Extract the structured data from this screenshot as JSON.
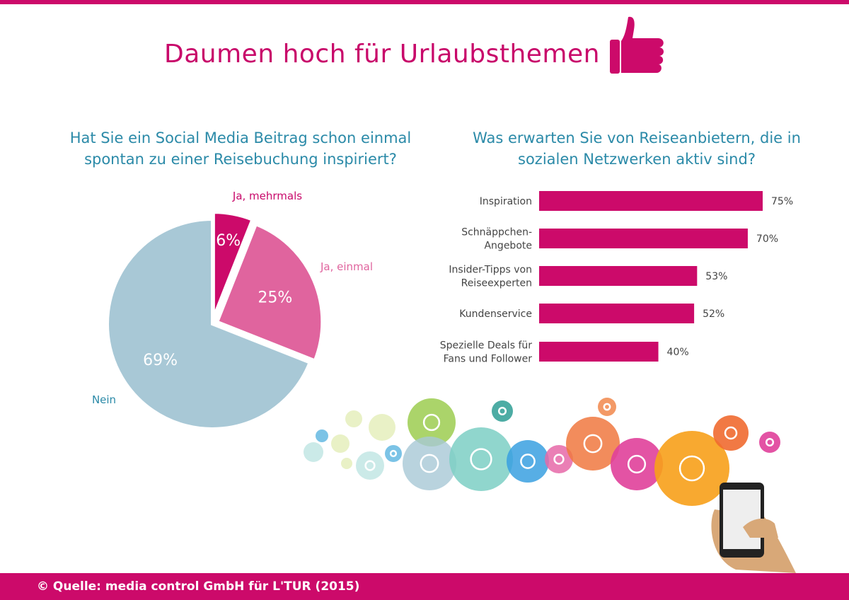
{
  "title": "Daumen hoch für Urlaubsthemen",
  "footer": "© Quelle: media control GmbH für L'TUR (2015)",
  "colors": {
    "brand": "#cc0a6a",
    "question": "#2b8aa8",
    "pie_once": "#e0649e",
    "pie_no": "#a8c8d6"
  },
  "chart_data": [
    {
      "type": "pie",
      "title": "Hat Sie ein Social Media Beitrag schon einmal spontan zu einer Reisebuchung inspiriert?",
      "slices": [
        {
          "label": "Ja, mehrmals",
          "value": 6,
          "value_label": "6%",
          "color": "#cc0a6a"
        },
        {
          "label": "Ja, einmal",
          "value": 25,
          "value_label": "25%",
          "color": "#e0649e"
        },
        {
          "label": "Nein",
          "value": 69,
          "value_label": "69%",
          "color": "#a8c8d6"
        }
      ]
    },
    {
      "type": "bar",
      "orientation": "horizontal",
      "title": "Was erwarten Sie von Reiseanbietern, die in sozialen Netzwerken aktiv sind?",
      "categories": [
        "Inspiration",
        "Schnäppchen-\nAngebote",
        "Insider-Tipps von\nReiseexperten",
        "Kundenservice",
        "Spezielle Deals für\nFans und Follower"
      ],
      "values": [
        75,
        70,
        53,
        52,
        40
      ],
      "value_labels": [
        "75%",
        "70%",
        "53%",
        "52%",
        "40%"
      ],
      "color": "#cc0a6a",
      "unit": "%"
    }
  ],
  "icons": [
    "chat-icon",
    "gear-icon",
    "microphone-icon",
    "home-pin-icon",
    "cloud-icon",
    "share-icon",
    "phone-icon",
    "laptop-icon",
    "music-icon",
    "settings-icon",
    "globe-icon",
    "people-chat-icon",
    "star-icon",
    "bag-icon",
    "smartphone-in-hand-icon"
  ]
}
